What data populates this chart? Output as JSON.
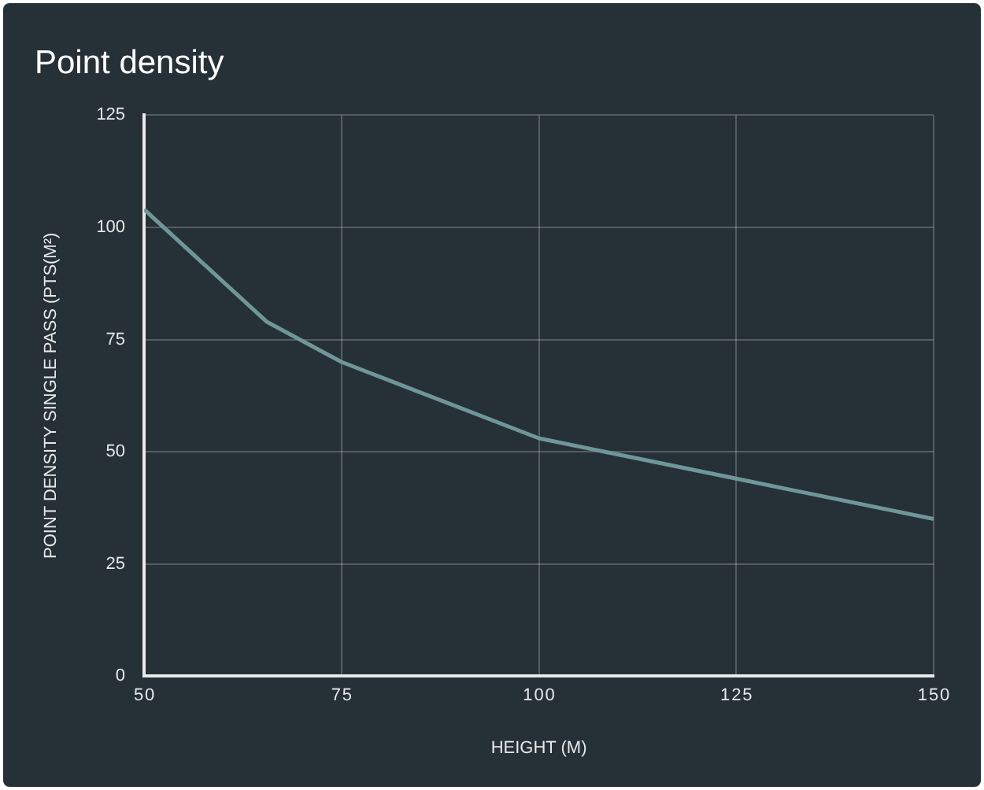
{
  "chart_data": {
    "type": "line",
    "title": "Point density",
    "xlabel": "HEIGHT (M)",
    "ylabel": "POINT DENSITY SINGLE PASS (PTS(M²)",
    "x": [
      50,
      65.5,
      75,
      100,
      125,
      150
    ],
    "series": [
      {
        "color": "#6f9698",
        "values": [
          104,
          79,
          70,
          53,
          44,
          35
        ]
      }
    ],
    "xlim": [
      50,
      150
    ],
    "xticks": [
      50,
      75,
      100,
      125,
      150
    ],
    "ylim": [
      0,
      125
    ],
    "yticks": [
      0,
      25,
      50,
      75,
      100,
      125
    ],
    "grid": true,
    "legend": false,
    "marker": "none",
    "line_style": "solid"
  }
}
